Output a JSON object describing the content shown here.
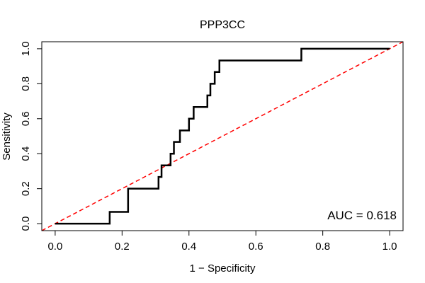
{
  "chart_data": {
    "type": "line",
    "title": "PPP3CC",
    "xlabel": "1 − Specificity",
    "ylabel": "Sensitivity",
    "xlim": [
      -0.04,
      1.04
    ],
    "ylim": [
      -0.04,
      1.04
    ],
    "x_ticks": [
      0.0,
      0.2,
      0.4,
      0.6,
      0.8,
      1.0
    ],
    "x_tick_labels": [
      "0.0",
      "0.2",
      "0.4",
      "0.6",
      "0.8",
      "1.0"
    ],
    "y_ticks": [
      0.0,
      0.2,
      0.4,
      0.6,
      0.8,
      1.0
    ],
    "y_tick_labels": [
      "0.0",
      "0.2",
      "0.4",
      "0.6",
      "0.8",
      "1.0"
    ],
    "grid": false,
    "annotation": "AUC = 0.618",
    "series": [
      {
        "style": "solid",
        "color": "#000000",
        "x": [
          0.0,
          0.163,
          0.163,
          0.218,
          0.218,
          0.309,
          0.309,
          0.318,
          0.318,
          0.327,
          0.327,
          0.345,
          0.345,
          0.355,
          0.355,
          0.373,
          0.373,
          0.382,
          0.382,
          0.4,
          0.4,
          0.414,
          0.414,
          0.455,
          0.455,
          0.464,
          0.464,
          0.477,
          0.477,
          0.491,
          0.491,
          0.736,
          0.736,
          1.0
        ],
        "y": [
          0.0,
          0.0,
          0.067,
          0.067,
          0.2,
          0.2,
          0.267,
          0.267,
          0.333,
          0.333,
          0.333,
          0.333,
          0.4,
          0.4,
          0.467,
          0.467,
          0.533,
          0.533,
          0.533,
          0.533,
          0.6,
          0.6,
          0.667,
          0.667,
          0.733,
          0.733,
          0.8,
          0.8,
          0.867,
          0.867,
          0.933,
          0.933,
          1.0,
          1.0
        ]
      },
      {
        "style": "dashed",
        "color": "#ff0000",
        "x": [
          -0.04,
          1.04
        ],
        "y": [
          -0.04,
          1.04
        ]
      }
    ]
  }
}
